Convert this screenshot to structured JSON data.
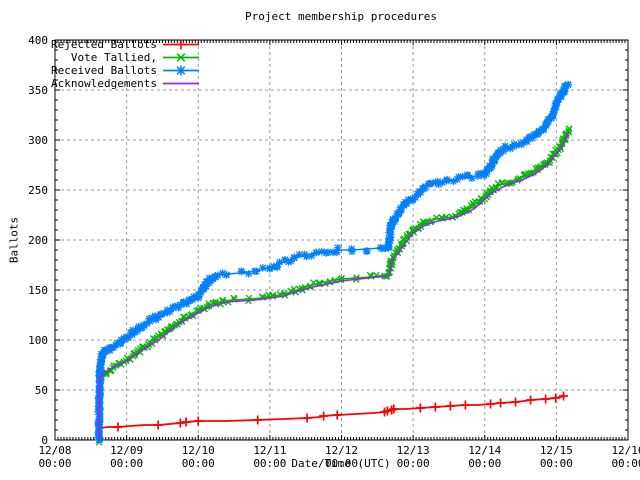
{
  "chart_data": {
    "type": "line",
    "title": "Project membership procedures",
    "xlabel": "Date/Time (UTC)",
    "ylabel": "Ballots",
    "grid": true,
    "background": "#ffffff",
    "grid_color": "#9a9a9a",
    "axis_color": "#000000",
    "x_axis": {
      "range_days": [
        0,
        8
      ],
      "ticks": [
        {
          "date": "12/08",
          "time": "00:00"
        },
        {
          "date": "12/09",
          "time": "00:00"
        },
        {
          "date": "12/10",
          "time": "00:00"
        },
        {
          "date": "12/11",
          "time": "00:00"
        },
        {
          "date": "12/12",
          "time": "00:00"
        },
        {
          "date": "12/13",
          "time": "00:00"
        },
        {
          "date": "12/14",
          "time": "00:00"
        },
        {
          "date": "12/15",
          "time": "00:00"
        },
        {
          "date": "12/16",
          "time": "00:00"
        }
      ],
      "minor_ticks_per_day": 24
    },
    "y_axis": {
      "min": 0,
      "max": 400,
      "tick_step": 50,
      "minor_step": 10,
      "ticks": [
        0,
        50,
        100,
        150,
        200,
        250,
        300,
        350,
        400
      ]
    },
    "legend": {
      "position": "top-left-inside",
      "entries": [
        {
          "label": "Rejected Ballots",
          "color": "#ff0000",
          "marker": "plus"
        },
        {
          "label": "Vote Tallied,",
          "color": "#00b800",
          "marker": "cross"
        },
        {
          "label": "Received Ballots",
          "color": "#0080ff",
          "marker": "star"
        },
        {
          "label": "Acknowledgements",
          "color": "#a020f0",
          "marker": "none"
        }
      ]
    },
    "series": [
      {
        "name": "Rejected Ballots",
        "color": "#ff0000",
        "marker": "plus",
        "band": false,
        "points": [
          [
            0.615,
            0
          ],
          [
            0.62,
            12
          ],
          [
            0.75,
            13
          ],
          [
            0.88,
            13
          ],
          [
            1.05,
            14
          ],
          [
            1.25,
            15
          ],
          [
            1.44,
            15
          ],
          [
            1.6,
            16
          ],
          [
            1.75,
            17
          ],
          [
            1.83,
            18
          ],
          [
            2.0,
            19
          ],
          [
            2.4,
            19
          ],
          [
            2.83,
            20
          ],
          [
            3.2,
            21
          ],
          [
            3.52,
            22
          ],
          [
            3.7,
            23
          ],
          [
            3.75,
            24
          ],
          [
            3.94,
            25
          ],
          [
            4.2,
            26
          ],
          [
            4.45,
            27
          ],
          [
            4.6,
            28
          ],
          [
            4.64,
            29
          ],
          [
            4.7,
            30
          ],
          [
            4.73,
            31
          ],
          [
            4.9,
            31
          ],
          [
            5.1,
            32
          ],
          [
            5.31,
            33
          ],
          [
            5.52,
            34
          ],
          [
            5.73,
            35
          ],
          [
            5.9,
            35
          ],
          [
            6.08,
            36
          ],
          [
            6.22,
            37
          ],
          [
            6.43,
            38
          ],
          [
            6.55,
            39
          ],
          [
            6.64,
            40
          ],
          [
            6.85,
            41
          ],
          [
            6.99,
            42
          ],
          [
            7.06,
            43
          ],
          [
            7.1,
            44
          ]
        ],
        "marker_points": [
          [
            0.88,
            13
          ],
          [
            1.44,
            15
          ],
          [
            1.75,
            17
          ],
          [
            1.83,
            18
          ],
          [
            2.0,
            19
          ],
          [
            2.83,
            20
          ],
          [
            3.52,
            22
          ],
          [
            3.75,
            24
          ],
          [
            3.94,
            25
          ],
          [
            4.6,
            28
          ],
          [
            4.64,
            29
          ],
          [
            4.7,
            30
          ],
          [
            4.73,
            31
          ],
          [
            5.1,
            32
          ],
          [
            5.31,
            33
          ],
          [
            5.52,
            34
          ],
          [
            5.73,
            35
          ],
          [
            6.08,
            36
          ],
          [
            6.22,
            37
          ],
          [
            6.43,
            38
          ],
          [
            6.64,
            40
          ],
          [
            6.85,
            41
          ],
          [
            6.99,
            42
          ],
          [
            7.1,
            44
          ]
        ]
      },
      {
        "name": "Vote Tallied,",
        "color": "#00b800",
        "marker": "cross",
        "band": true,
        "points": [
          [
            0.615,
            0
          ],
          [
            0.62,
            45
          ],
          [
            0.63,
            61
          ],
          [
            0.65,
            64
          ],
          [
            0.7,
            67
          ],
          [
            0.76,
            70
          ],
          [
            0.82,
            73
          ],
          [
            0.9,
            76
          ],
          [
            1.0,
            80
          ],
          [
            1.1,
            85
          ],
          [
            1.2,
            90
          ],
          [
            1.3,
            96
          ],
          [
            1.4,
            101
          ],
          [
            1.5,
            106
          ],
          [
            1.6,
            111
          ],
          [
            1.7,
            116
          ],
          [
            1.8,
            121
          ],
          [
            1.9,
            125
          ],
          [
            2.0,
            129
          ],
          [
            2.08,
            132
          ],
          [
            2.16,
            135
          ],
          [
            2.25,
            137
          ],
          [
            2.35,
            139
          ],
          [
            2.5,
            140
          ],
          [
            2.7,
            141
          ],
          [
            2.9,
            142
          ],
          [
            3.05,
            144
          ],
          [
            3.2,
            146
          ],
          [
            3.35,
            149
          ],
          [
            3.45,
            152
          ],
          [
            3.55,
            154
          ],
          [
            3.7,
            157
          ],
          [
            3.85,
            159
          ],
          [
            4.0,
            161
          ],
          [
            4.2,
            162
          ],
          [
            4.4,
            163
          ],
          [
            4.6,
            165
          ],
          [
            4.67,
            166
          ],
          [
            4.7,
            181
          ],
          [
            4.78,
            189
          ],
          [
            4.86,
            197
          ],
          [
            4.94,
            205
          ],
          [
            5.0,
            209
          ],
          [
            5.08,
            214
          ],
          [
            5.16,
            218
          ],
          [
            5.25,
            220
          ],
          [
            5.4,
            222
          ],
          [
            5.55,
            223
          ],
          [
            5.65,
            226
          ],
          [
            5.75,
            230
          ],
          [
            5.85,
            235
          ],
          [
            5.95,
            240
          ],
          [
            6.0,
            243
          ],
          [
            6.08,
            249
          ],
          [
            6.15,
            253
          ],
          [
            6.25,
            256
          ],
          [
            6.35,
            258
          ],
          [
            6.45,
            261
          ],
          [
            6.55,
            263
          ],
          [
            6.65,
            267
          ],
          [
            6.75,
            271
          ],
          [
            6.85,
            277
          ],
          [
            6.93,
            282
          ],
          [
            7.0,
            288
          ],
          [
            7.05,
            293
          ],
          [
            7.1,
            299
          ],
          [
            7.14,
            305
          ],
          [
            7.17,
            310
          ]
        ]
      },
      {
        "name": "Received Ballots",
        "color": "#0080ff",
        "marker": "star",
        "band": true,
        "points": [
          [
            0.615,
            0
          ],
          [
            0.62,
            60
          ],
          [
            0.63,
            76
          ],
          [
            0.64,
            80
          ],
          [
            0.66,
            84
          ],
          [
            0.7,
            88
          ],
          [
            0.75,
            91
          ],
          [
            0.8,
            93
          ],
          [
            0.86,
            96
          ],
          [
            0.93,
            99
          ],
          [
            1.0,
            103
          ],
          [
            1.08,
            107
          ],
          [
            1.16,
            112
          ],
          [
            1.24,
            116
          ],
          [
            1.32,
            119
          ],
          [
            1.4,
            122
          ],
          [
            1.48,
            125
          ],
          [
            1.56,
            128
          ],
          [
            1.64,
            131
          ],
          [
            1.72,
            134
          ],
          [
            1.8,
            136
          ],
          [
            1.88,
            139
          ],
          [
            1.95,
            141
          ],
          [
            2.0,
            144
          ],
          [
            2.04,
            148
          ],
          [
            2.08,
            152
          ],
          [
            2.12,
            156
          ],
          [
            2.16,
            160
          ],
          [
            2.2,
            163
          ],
          [
            2.26,
            165
          ],
          [
            2.4,
            166
          ],
          [
            2.6,
            167
          ],
          [
            2.8,
            169
          ],
          [
            3.0,
            172
          ],
          [
            3.1,
            175
          ],
          [
            3.2,
            178
          ],
          [
            3.35,
            182
          ],
          [
            3.5,
            185
          ],
          [
            3.65,
            187
          ],
          [
            3.8,
            188
          ],
          [
            3.95,
            190
          ],
          [
            4.15,
            190
          ],
          [
            4.35,
            191
          ],
          [
            4.55,
            192
          ],
          [
            4.66,
            193
          ],
          [
            4.69,
            214
          ],
          [
            4.76,
            223
          ],
          [
            4.83,
            230
          ],
          [
            4.9,
            236
          ],
          [
            4.97,
            241
          ],
          [
            5.03,
            244
          ],
          [
            5.1,
            249
          ],
          [
            5.17,
            253
          ],
          [
            5.25,
            256
          ],
          [
            5.35,
            257
          ],
          [
            5.48,
            259
          ],
          [
            5.62,
            261
          ],
          [
            5.76,
            263
          ],
          [
            5.9,
            264
          ],
          [
            6.0,
            266
          ],
          [
            6.08,
            273
          ],
          [
            6.15,
            282
          ],
          [
            6.22,
            288
          ],
          [
            6.3,
            292
          ],
          [
            6.4,
            295
          ],
          [
            6.5,
            297
          ],
          [
            6.58,
            299
          ],
          [
            6.65,
            302
          ],
          [
            6.75,
            307
          ],
          [
            6.85,
            313
          ],
          [
            6.93,
            323
          ],
          [
            7.0,
            337
          ],
          [
            7.05,
            343
          ],
          [
            7.1,
            349
          ],
          [
            7.14,
            353
          ],
          [
            7.16,
            355
          ]
        ]
      },
      {
        "name": "Acknowledgements",
        "color": "#a020f0",
        "marker": "none",
        "band": false,
        "points": [
          [
            0.615,
            0
          ],
          [
            0.62,
            62
          ],
          [
            0.7,
            68
          ],
          [
            0.8,
            72
          ],
          [
            0.9,
            75
          ],
          [
            1.0,
            79
          ],
          [
            1.15,
            86
          ],
          [
            1.3,
            94
          ],
          [
            1.45,
            100
          ],
          [
            1.6,
            109
          ],
          [
            1.75,
            117
          ],
          [
            1.9,
            123
          ],
          [
            2.0,
            127
          ],
          [
            2.1,
            131
          ],
          [
            2.25,
            135
          ],
          [
            2.4,
            138
          ],
          [
            2.6,
            139
          ],
          [
            2.8,
            140
          ],
          [
            3.0,
            142
          ],
          [
            3.2,
            144
          ],
          [
            3.4,
            149
          ],
          [
            3.6,
            153
          ],
          [
            3.8,
            156
          ],
          [
            4.0,
            159
          ],
          [
            4.25,
            161
          ],
          [
            4.5,
            163
          ],
          [
            4.67,
            164
          ],
          [
            4.7,
            179
          ],
          [
            4.8,
            188
          ],
          [
            4.9,
            198
          ],
          [
            5.0,
            207
          ],
          [
            5.1,
            212
          ],
          [
            5.2,
            216
          ],
          [
            5.35,
            219
          ],
          [
            5.5,
            221
          ],
          [
            5.65,
            224
          ],
          [
            5.8,
            229
          ],
          [
            5.95,
            237
          ],
          [
            6.0,
            241
          ],
          [
            6.1,
            247
          ],
          [
            6.25,
            253
          ],
          [
            6.4,
            257
          ],
          [
            6.55,
            261
          ],
          [
            6.7,
            266
          ],
          [
            6.85,
            274
          ],
          [
            7.0,
            286
          ],
          [
            7.08,
            294
          ],
          [
            7.14,
            302
          ],
          [
            7.17,
            308
          ]
        ]
      }
    ]
  }
}
